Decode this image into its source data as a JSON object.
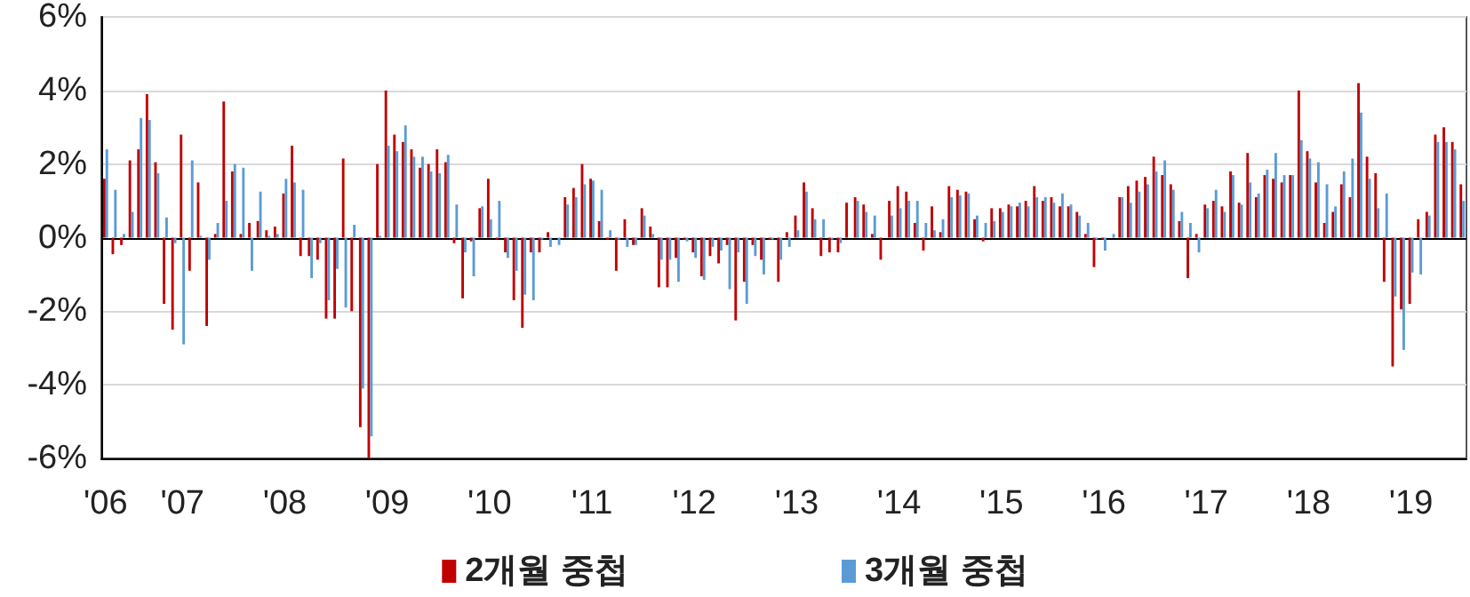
{
  "chart_data": {
    "type": "bar",
    "categories": [
      "'06",
      null,
      null,
      null,
      null,
      null,
      null,
      null,
      null,
      "'07",
      null,
      null,
      null,
      null,
      null,
      null,
      null,
      null,
      null,
      null,
      null,
      "'08",
      null,
      null,
      null,
      null,
      null,
      null,
      null,
      null,
      null,
      null,
      null,
      "'09",
      null,
      null,
      null,
      null,
      null,
      null,
      null,
      null,
      null,
      null,
      null,
      "'10",
      null,
      null,
      null,
      null,
      null,
      null,
      null,
      null,
      null,
      null,
      null,
      "'11",
      null,
      null,
      null,
      null,
      null,
      null,
      null,
      null,
      null,
      null,
      null,
      "'12",
      null,
      null,
      null,
      null,
      null,
      null,
      null,
      null,
      null,
      null,
      null,
      "'13",
      null,
      null,
      null,
      null,
      null,
      null,
      null,
      null,
      null,
      null,
      null,
      "'14",
      null,
      null,
      null,
      null,
      null,
      null,
      null,
      null,
      null,
      null,
      null,
      "'15",
      null,
      null,
      null,
      null,
      null,
      null,
      null,
      null,
      null,
      null,
      null,
      "'16",
      null,
      null,
      null,
      null,
      null,
      null,
      null,
      null,
      null,
      null,
      null,
      "'17",
      null,
      null,
      null,
      null,
      null,
      null,
      null,
      null,
      null,
      null,
      null,
      "'18",
      null,
      null,
      null,
      null,
      null,
      null,
      null,
      null,
      null,
      null,
      null,
      "'19",
      null,
      null,
      null,
      null,
      null,
      null
    ],
    "series": [
      {
        "name": "2개월 중첩",
        "color": "#c00000",
        "values": [
          1.6,
          -0.45,
          -0.2,
          2.1,
          2.4,
          3.9,
          2.05,
          -1.8,
          -2.5,
          2.8,
          -0.9,
          1.5,
          -2.4,
          0.1,
          3.7,
          1.8,
          0.1,
          0.4,
          0.45,
          0.2,
          0.3,
          1.2,
          2.5,
          -0.5,
          -0.5,
          -0.6,
          -2.2,
          -2.2,
          2.15,
          -2.0,
          -5.15,
          -6.0,
          2.0,
          4.0,
          2.8,
          2.6,
          2.4,
          1.9,
          2.0,
          2.4,
          2.05,
          -0.15,
          -1.65,
          -0.1,
          0.8,
          1.6,
          -0.05,
          -0.4,
          -1.7,
          -2.45,
          -0.4,
          -0.4,
          0.15,
          0,
          1.1,
          1.35,
          2.0,
          1.6,
          0.45,
          -0.05,
          -0.9,
          0.5,
          -0.2,
          0.8,
          0.3,
          -1.35,
          -1.35,
          -0.55,
          -0.05,
          -0.4,
          -1.05,
          -0.5,
          -0.7,
          -0.2,
          -2.25,
          -1.2,
          -0.2,
          -0.6,
          -0.05,
          -1.2,
          0.15,
          0.6,
          1.5,
          0.8,
          -0.5,
          -0.4,
          -0.4,
          0.95,
          1.1,
          0.9,
          0.1,
          -0.6,
          1.0,
          1.4,
          1.25,
          0.4,
          -0.35,
          0.85,
          0.15,
          1.4,
          1.3,
          1.25,
          0.5,
          -0.1,
          0.8,
          0.8,
          0.9,
          0.85,
          1.0,
          1.4,
          1.0,
          1.1,
          0.85,
          0.85,
          0.7,
          0.1,
          -0.8,
          -0.05,
          0,
          1.1,
          1.4,
          1.55,
          1.65,
          2.2,
          1.7,
          1.45,
          0.45,
          -1.1,
          0.1,
          0.9,
          1.0,
          0.85,
          1.8,
          0.95,
          2.3,
          1.1,
          1.7,
          1.6,
          1.5,
          1.7,
          4.0,
          2.35,
          1.5,
          0.4,
          0.7,
          1.45,
          1.1,
          4.2,
          2.2,
          1.75,
          -1.2,
          -3.5,
          -1.95,
          -1.8,
          0.5,
          0.7,
          2.8,
          3.0,
          2.6,
          1.45
        ]
      },
      {
        "name": "3개월 중첩",
        "color": "#5b9bd5",
        "values": [
          2.4,
          1.3,
          0.1,
          0.7,
          3.25,
          3.2,
          1.75,
          0.55,
          -0.15,
          -2.9,
          2.1,
          0.05,
          -0.6,
          0.4,
          1.0,
          2.0,
          1.9,
          -0.9,
          1.25,
          0.05,
          0.1,
          1.6,
          1.5,
          1.3,
          -1.1,
          -0.15,
          -1.7,
          -0.85,
          -1.9,
          0.35,
          -4.1,
          -5.4,
          0.05,
          2.5,
          2.35,
          3.05,
          2.2,
          2.2,
          1.8,
          1.75,
          2.25,
          0.9,
          -0.4,
          -1.05,
          0.85,
          0.5,
          1.0,
          -0.55,
          -0.9,
          -1.55,
          -1.7,
          -0.05,
          -0.25,
          -0.2,
          0.9,
          1.1,
          1.45,
          1.55,
          1.3,
          0.2,
          -0.05,
          -0.25,
          -0.2,
          0.6,
          0.1,
          -0.6,
          -0.6,
          -1.2,
          -0.1,
          -0.55,
          -1.15,
          -0.25,
          -0.35,
          -1.4,
          -0.4,
          -1.8,
          -0.5,
          -1.0,
          -0.05,
          -0.6,
          -0.25,
          0.2,
          1.25,
          0.5,
          0.5,
          -0.05,
          -0.15,
          0,
          1.0,
          0.7,
          0.6,
          0,
          0.6,
          0.8,
          1.0,
          1.0,
          0.4,
          0.2,
          0.5,
          1.1,
          1.15,
          1.2,
          0.6,
          0.4,
          0.45,
          0.7,
          0.85,
          0.95,
          0.85,
          1.1,
          1.1,
          0.95,
          1.2,
          0.9,
          0.6,
          0.4,
          -0.05,
          -0.35,
          0.1,
          1.1,
          0.95,
          1.25,
          1.45,
          1.8,
          2.1,
          1.3,
          0.7,
          0.4,
          -0.4,
          0.8,
          1.3,
          0.7,
          1.7,
          0.9,
          1.5,
          1.2,
          1.85,
          2.3,
          1.7,
          1.7,
          2.65,
          2.15,
          2.05,
          1.45,
          0.85,
          1.8,
          2.15,
          3.4,
          1.6,
          0.8,
          1.2,
          -1.6,
          -3.05,
          -0.95,
          -1.0,
          0.6,
          2.6,
          2.6,
          2.4,
          1.0
        ]
      }
    ],
    "ylim": [
      -6,
      6
    ],
    "yticks": [
      {
        "value": -6,
        "label": "-6%"
      },
      {
        "value": -4,
        "label": "-4%"
      },
      {
        "value": -2,
        "label": "-2%"
      },
      {
        "value": 0,
        "label": "0%"
      },
      {
        "value": 2,
        "label": "2%"
      },
      {
        "value": 4,
        "label": "4%"
      },
      {
        "value": 6,
        "label": "6%"
      }
    ],
    "grid": "y",
    "legend": "bottom"
  }
}
